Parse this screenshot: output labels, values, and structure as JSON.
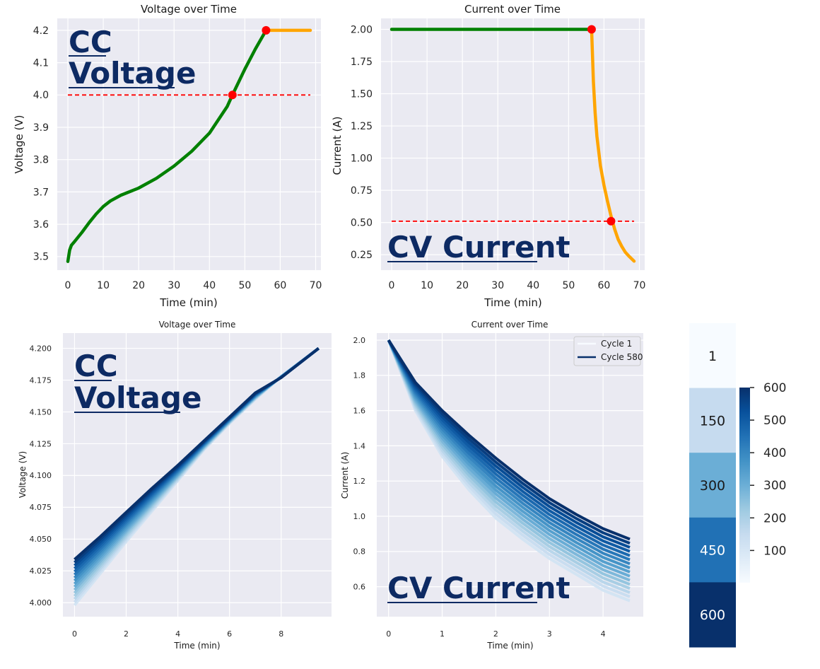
{
  "charts": {
    "tl": {
      "title": "Voltage over Time",
      "xlabel": "Time (min)",
      "ylabel": "Voltage (V)",
      "overlay": [
        "CC",
        "Voltage"
      ],
      "x_ticks": [
        "0",
        "10",
        "20",
        "30",
        "40",
        "50",
        "60",
        "70"
      ],
      "y_ticks": [
        "3.5",
        "3.6",
        "3.7",
        "3.8",
        "3.9",
        "4.0",
        "4.1",
        "4.2"
      ]
    },
    "tr": {
      "title": "Current over Time",
      "xlabel": "Time (min)",
      "ylabel": "Current (A)",
      "overlay": [
        "CV Current"
      ],
      "x_ticks": [
        "0",
        "10",
        "20",
        "30",
        "40",
        "50",
        "60",
        "70"
      ],
      "y_ticks": [
        "0.25",
        "0.50",
        "0.75",
        "1.00",
        "1.25",
        "1.50",
        "1.75",
        "2.00"
      ]
    },
    "bl": {
      "title": "Voltage over Time",
      "xlabel": "Time (min)",
      "ylabel": "Voltage (V)",
      "overlay": [
        "CC",
        "Voltage"
      ],
      "x_ticks": [
        "0",
        "2",
        "4",
        "6",
        "8"
      ],
      "y_ticks": [
        "4.000",
        "4.025",
        "4.050",
        "4.075",
        "4.100",
        "4.125",
        "4.150",
        "4.175",
        "4.200"
      ]
    },
    "br": {
      "title": "Current over Time",
      "xlabel": "Time (min)",
      "ylabel": "Current (A)",
      "overlay": [
        "CV Current"
      ],
      "x_ticks": [
        "0",
        "1",
        "2",
        "3",
        "4"
      ],
      "y_ticks": [
        "0.6",
        "0.8",
        "1.0",
        "1.2",
        "1.4",
        "1.6",
        "1.8",
        "2.0"
      ],
      "legend": [
        "Cycle 1",
        "Cycle 580"
      ]
    },
    "heat": {
      "cells": [
        "1",
        "150",
        "300",
        "450",
        "600"
      ],
      "cbar_ticks": [
        "100",
        "200",
        "300",
        "400",
        "500",
        "600"
      ]
    }
  },
  "chart_data": [
    {
      "type": "line",
      "title": "Voltage over Time",
      "xlabel": "Time (min)",
      "ylabel": "Voltage (V)",
      "xlim": [
        -3,
        71.5
      ],
      "ylim": [
        3.458,
        4.237
      ],
      "series": [
        {
          "phase": "CC",
          "color": "#008000",
          "x": [
            0,
            0.5,
            1,
            2,
            4,
            6,
            8,
            10,
            12,
            15,
            20,
            25,
            30,
            35,
            40,
            45,
            46.5,
            50,
            53,
            56
          ],
          "y": [
            3.485,
            3.52,
            3.535,
            3.548,
            3.575,
            3.605,
            3.632,
            3.655,
            3.672,
            3.69,
            3.712,
            3.742,
            3.78,
            3.826,
            3.882,
            3.964,
            4.0,
            4.08,
            4.143,
            4.2
          ]
        },
        {
          "phase": "CV",
          "color": "#ffa500",
          "x": [
            56,
            68.5
          ],
          "y": [
            4.2,
            4.2
          ]
        }
      ],
      "threshold": {
        "y": 4.0,
        "x": [
          0,
          68.5
        ],
        "color": "#ff0000"
      },
      "markers": [
        {
          "x": 46.5,
          "y": 4.0
        },
        {
          "x": 56,
          "y": 4.2
        }
      ]
    },
    {
      "type": "line",
      "title": "Current over Time",
      "xlabel": "Time (min)",
      "ylabel": "Current (A)",
      "xlim": [
        -3,
        71.5
      ],
      "ylim": [
        0.13,
        2.085
      ],
      "series": [
        {
          "phase": "CC",
          "color": "#008000",
          "x": [
            0,
            56.5
          ],
          "y": [
            2.0,
            2.0
          ]
        },
        {
          "phase": "CV",
          "color": "#ffa500",
          "x": [
            56.5,
            57,
            57.5,
            58,
            59,
            60,
            61,
            62,
            63,
            64,
            65,
            66,
            67,
            68.5
          ],
          "y": [
            2.0,
            1.6,
            1.35,
            1.17,
            0.94,
            0.79,
            0.665,
            0.55,
            0.45,
            0.37,
            0.315,
            0.27,
            0.24,
            0.2
          ]
        }
      ],
      "threshold": {
        "y": 0.51,
        "x": [
          0,
          68.5
        ],
        "color": "#ff0000"
      },
      "markers": [
        {
          "x": 56.5,
          "y": 2.0
        },
        {
          "x": 62,
          "y": 0.51
        }
      ]
    },
    {
      "type": "line",
      "title": "Voltage over Time",
      "xlabel": "Time (min)",
      "ylabel": "Voltage (V)",
      "xlim": [
        -0.45,
        9.95
      ],
      "ylim": [
        3.989,
        4.212
      ],
      "x": [
        0,
        1,
        2,
        3,
        4,
        5,
        6,
        7,
        8,
        9.45
      ],
      "series_family": {
        "count": 16,
        "cycle_range": [
          1,
          580
        ],
        "colormap": "Blues",
        "first_cycle": [
          3.998,
          4.023,
          4.048,
          4.072,
          4.096,
          4.12,
          4.141,
          4.16,
          4.178,
          4.2
        ],
        "last_cycle": [
          4.034,
          4.052,
          4.071,
          4.09,
          4.108,
          4.127,
          4.146,
          4.165,
          4.177,
          4.2
        ]
      }
    },
    {
      "type": "line",
      "title": "Current over Time",
      "xlabel": "Time (min)",
      "ylabel": "Current (A)",
      "xlim": [
        -0.22,
        4.75
      ],
      "ylim": [
        0.43,
        2.04
      ],
      "x": [
        0,
        0.5,
        1,
        1.5,
        2,
        2.5,
        3,
        3.5,
        4,
        4.5
      ],
      "series_family": {
        "count": 16,
        "cycle_range": [
          1,
          580
        ],
        "colormap": "Blues",
        "first_cycle": [
          2.0,
          1.6,
          1.34,
          1.15,
          0.99,
          0.87,
          0.76,
          0.67,
          0.58,
          0.52
        ],
        "last_cycle": [
          2.0,
          1.76,
          1.6,
          1.46,
          1.33,
          1.21,
          1.1,
          1.01,
          0.93,
          0.87
        ]
      },
      "legend": {
        "position": "top-right",
        "entries": [
          "Cycle 1",
          "Cycle 580"
        ]
      }
    },
    {
      "type": "heatmap",
      "colormap": "Blues",
      "values": [
        1,
        150,
        300,
        450,
        600
      ],
      "colorbar": {
        "range": [
          1,
          600
        ],
        "ticks": [
          100,
          200,
          300,
          400,
          500,
          600
        ]
      }
    }
  ]
}
